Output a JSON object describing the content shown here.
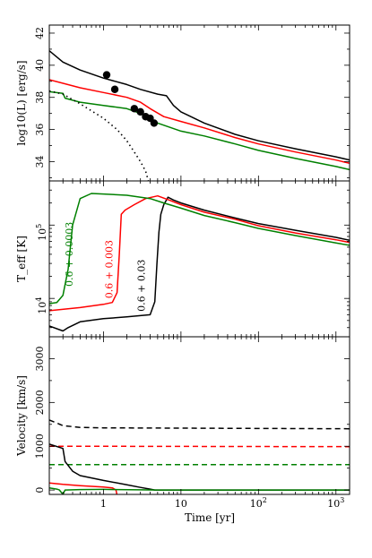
{
  "figure": {
    "xlabel": "Time [yr]",
    "x_scale": "log",
    "xlim": [
      0.2,
      1500
    ],
    "x_ticks": [
      {
        "v": 1,
        "label": "1"
      },
      {
        "v": 10,
        "label": "10"
      },
      {
        "v": 100,
        "label": "10^2"
      },
      {
        "v": 1000,
        "label": "10^3"
      }
    ],
    "colors": {
      "0.6+0.03": "#000000",
      "0.6+0.003": "#ff0000",
      "0.6+0.0003": "#008000"
    }
  },
  "chart_data": [
    {
      "type": "line",
      "panel": "top",
      "ylabel": "log10(L) [erg/s]",
      "ylim": [
        32.8,
        42.5
      ],
      "yticks": [
        34,
        36,
        38,
        40,
        42
      ],
      "series": [
        {
          "color": "#000000",
          "style": "solid",
          "points": [
            [
              0.2,
              40.9
            ],
            [
              0.3,
              40.2
            ],
            [
              0.5,
              39.7
            ],
            [
              1,
              39.2
            ],
            [
              2,
              38.8
            ],
            [
              3,
              38.5
            ],
            [
              5,
              38.2
            ],
            [
              6.5,
              38.1
            ],
            [
              8,
              37.5
            ],
            [
              10,
              37.1
            ],
            [
              20,
              36.4
            ],
            [
              50,
              35.7
            ],
            [
              100,
              35.3
            ],
            [
              300,
              34.8
            ],
            [
              1000,
              34.3
            ],
            [
              1500,
              34.1
            ]
          ]
        },
        {
          "color": "#ff0000",
          "style": "solid",
          "points": [
            [
              0.2,
              39.1
            ],
            [
              0.5,
              38.6
            ],
            [
              1,
              38.3
            ],
            [
              2,
              38.0
            ],
            [
              3,
              37.7
            ],
            [
              4,
              37.3
            ],
            [
              6,
              36.8
            ],
            [
              10,
              36.5
            ],
            [
              20,
              36.1
            ],
            [
              50,
              35.5
            ],
            [
              100,
              35.1
            ],
            [
              300,
              34.6
            ],
            [
              1000,
              34.1
            ],
            [
              1500,
              33.9
            ]
          ]
        },
        {
          "color": "#008000",
          "style": "solid",
          "points": [
            [
              0.2,
              38.35
            ],
            [
              0.3,
              38.25
            ],
            [
              0.32,
              37.95
            ],
            [
              0.5,
              37.7
            ],
            [
              1,
              37.5
            ],
            [
              2,
              37.3
            ],
            [
              3,
              37.0
            ],
            [
              5,
              36.4
            ],
            [
              10,
              35.9
            ],
            [
              20,
              35.6
            ],
            [
              50,
              35.1
            ],
            [
              100,
              34.7
            ],
            [
              300,
              34.2
            ],
            [
              1000,
              33.7
            ],
            [
              1500,
              33.5
            ]
          ]
        },
        {
          "color": "#000000",
          "style": "dotted",
          "points": [
            [
              0.2,
              38.4
            ],
            [
              0.3,
              38.2
            ],
            [
              0.5,
              37.6
            ],
            [
              1,
              36.7
            ],
            [
              1.5,
              36.0
            ],
            [
              2,
              35.3
            ],
            [
              2.5,
              34.6
            ],
            [
              3,
              34.0
            ],
            [
              3.5,
              33.4
            ],
            [
              3.8,
              32.8
            ]
          ]
        }
      ],
      "scatter": {
        "color": "#000000",
        "points": [
          [
            1.1,
            39.4
          ],
          [
            1.4,
            38.5
          ],
          [
            2.5,
            37.3
          ],
          [
            3.0,
            37.1
          ],
          [
            3.5,
            36.8
          ],
          [
            4.0,
            36.7
          ],
          [
            4.5,
            36.4
          ]
        ]
      }
    },
    {
      "type": "line",
      "panel": "middle",
      "ylabel": "T_eff [K]",
      "y_scale": "log",
      "ylim": [
        3000,
        400000
      ],
      "yticks": [
        {
          "v": 10000,
          "label": "10^4"
        },
        {
          "v": 100000,
          "label": "10^5"
        }
      ],
      "series": [
        {
          "name": "0.6+0.03",
          "color": "#000000",
          "points": [
            [
              0.2,
              4200
            ],
            [
              0.3,
              3600
            ],
            [
              0.35,
              4000
            ],
            [
              0.5,
              4800
            ],
            [
              1,
              5300
            ],
            [
              2,
              5600
            ],
            [
              4,
              6000
            ],
            [
              4.6,
              9000
            ],
            [
              4.9,
              30000
            ],
            [
              5.2,
              80000
            ],
            [
              5.5,
              140000
            ],
            [
              6,
              190000
            ],
            [
              6.8,
              240000
            ],
            [
              8,
              220000
            ],
            [
              10,
              200000
            ],
            [
              20,
              160000
            ],
            [
              50,
              125000
            ],
            [
              100,
              105000
            ],
            [
              300,
              85000
            ],
            [
              1000,
              68000
            ],
            [
              1500,
              62000
            ]
          ]
        },
        {
          "name": "0.6+0.003",
          "color": "#ff0000",
          "points": [
            [
              0.2,
              6800
            ],
            [
              0.5,
              7500
            ],
            [
              1,
              8300
            ],
            [
              1.3,
              8800
            ],
            [
              1.5,
              12000
            ],
            [
              1.6,
              40000
            ],
            [
              1.7,
              140000
            ],
            [
              1.9,
              160000
            ],
            [
              2.5,
              190000
            ],
            [
              3.5,
              230000
            ],
            [
              5,
              250000
            ],
            [
              7,
              220000
            ],
            [
              10,
              190000
            ],
            [
              20,
              150000
            ],
            [
              50,
              120000
            ],
            [
              100,
              98000
            ],
            [
              300,
              78000
            ],
            [
              1000,
              63000
            ],
            [
              1500,
              58000
            ]
          ]
        },
        {
          "name": "0.6+0.0003",
          "color": "#008000",
          "points": [
            [
              0.2,
              8500
            ],
            [
              0.25,
              8800
            ],
            [
              0.3,
              11000
            ],
            [
              0.35,
              25000
            ],
            [
              0.4,
              100000
            ],
            [
              0.5,
              230000
            ],
            [
              0.7,
              270000
            ],
            [
              1,
              265000
            ],
            [
              2,
              255000
            ],
            [
              4,
              230000
            ],
            [
              6,
              200000
            ],
            [
              10,
              170000
            ],
            [
              20,
              135000
            ],
            [
              50,
              108000
            ],
            [
              100,
              90000
            ],
            [
              300,
              72000
            ],
            [
              1000,
              57000
            ],
            [
              1500,
              53000
            ]
          ]
        }
      ],
      "labels": [
        {
          "text": "0.6 + 0.0003",
          "color": "#008000",
          "x": 0.4,
          "y": 40000
        },
        {
          "text": "0.6 + 0.003",
          "color": "#ff0000",
          "x": 1.3,
          "y": 25000
        },
        {
          "text": "0.6 + 0.03",
          "color": "#000000",
          "x": 3.4,
          "y": 15000
        }
      ]
    },
    {
      "type": "line",
      "panel": "bottom",
      "ylabel": "Velocity [km/s]",
      "ylim": [
        -100,
        3500
      ],
      "yticks": [
        0,
        1000,
        2000,
        3000
      ],
      "series": [
        {
          "color": "#000000",
          "style": "dashed",
          "points": [
            [
              0.2,
              1600
            ],
            [
              0.3,
              1470
            ],
            [
              0.5,
              1430
            ],
            [
              1,
              1420
            ],
            [
              1500,
              1400
            ]
          ]
        },
        {
          "color": "#ff0000",
          "style": "dashed",
          "points": [
            [
              0.2,
              1000
            ],
            [
              0.3,
              1000
            ],
            [
              1500,
              990
            ]
          ]
        },
        {
          "color": "#008000",
          "style": "dashed",
          "points": [
            [
              0.2,
              580
            ],
            [
              1500,
              580
            ]
          ]
        },
        {
          "color": "#000000",
          "style": "solid",
          "points": [
            [
              0.2,
              1050
            ],
            [
              0.3,
              950
            ],
            [
              0.32,
              650
            ],
            [
              0.4,
              430
            ],
            [
              0.5,
              330
            ],
            [
              1,
              220
            ],
            [
              2,
              120
            ],
            [
              3,
              60
            ],
            [
              4,
              20
            ],
            [
              4.6,
              0
            ],
            [
              1500,
              0
            ]
          ]
        },
        {
          "color": "#ff0000",
          "style": "solid",
          "points": [
            [
              0.2,
              160
            ],
            [
              0.3,
              130
            ],
            [
              0.5,
              100
            ],
            [
              1,
              70
            ],
            [
              1.3,
              50
            ],
            [
              1.45,
              0
            ],
            [
              1.5,
              -120
            ]
          ]
        },
        {
          "color": "#008000",
          "style": "solid",
          "points": [
            [
              0.2,
              50
            ],
            [
              0.25,
              20
            ],
            [
              0.27,
              0
            ],
            [
              0.3,
              -100
            ],
            [
              0.32,
              0
            ],
            [
              0.5,
              10
            ],
            [
              1,
              15
            ],
            [
              1.5,
              10
            ],
            [
              3,
              5
            ],
            [
              5,
              0
            ],
            [
              1500,
              0
            ]
          ]
        }
      ]
    }
  ]
}
